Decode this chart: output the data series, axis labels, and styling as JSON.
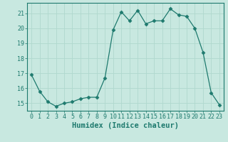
{
  "xlabel": "Humidex (Indice chaleur)",
  "x": [
    0,
    1,
    2,
    3,
    4,
    5,
    6,
    7,
    8,
    9,
    10,
    11,
    12,
    13,
    14,
    15,
    16,
    17,
    18,
    19,
    20,
    21,
    22,
    23
  ],
  "y": [
    16.9,
    15.8,
    15.1,
    14.8,
    15.0,
    15.1,
    15.3,
    15.4,
    15.4,
    16.7,
    19.9,
    21.1,
    20.5,
    21.2,
    20.3,
    20.5,
    20.5,
    21.3,
    20.9,
    20.8,
    20.0,
    18.4,
    15.7,
    14.9
  ],
  "line_color": "#1e7a6e",
  "marker": "D",
  "marker_size": 2.5,
  "bg_color": "#c8e8e0",
  "grid_color": "#b0d8ce",
  "spine_color": "#1e7a6e",
  "tick_color": "#1e7a6e",
  "label_color": "#1e7a6e",
  "ylim": [
    14.5,
    21.7
  ],
  "xlim": [
    -0.5,
    23.5
  ],
  "yticks": [
    15,
    16,
    17,
    18,
    19,
    20,
    21
  ],
  "xticks": [
    0,
    1,
    2,
    3,
    4,
    5,
    6,
    7,
    8,
    9,
    10,
    11,
    12,
    13,
    14,
    15,
    16,
    17,
    18,
    19,
    20,
    21,
    22,
    23
  ],
  "tick_fontsize": 6,
  "xlabel_fontsize": 7.5
}
